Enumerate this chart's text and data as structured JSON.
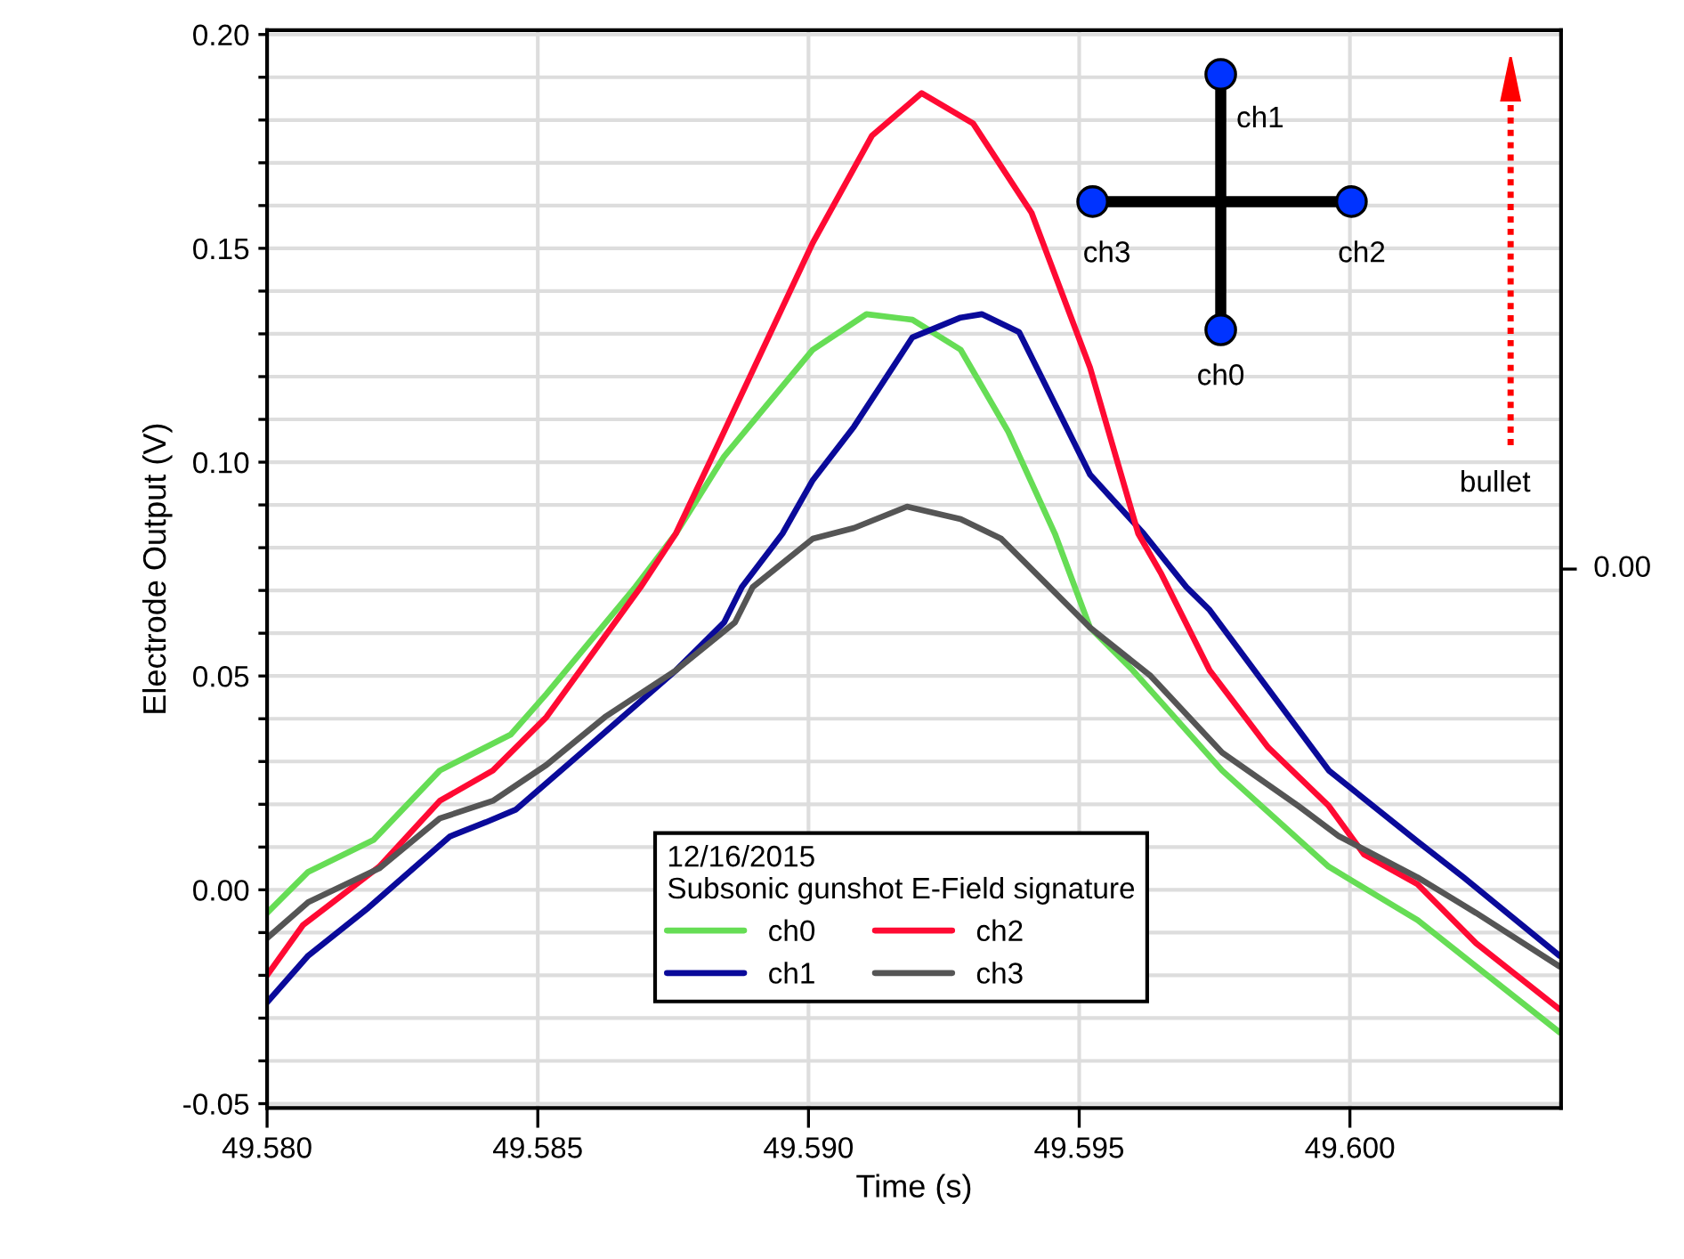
{
  "chart_data": {
    "type": "line",
    "xlabel": "Time (s)",
    "ylabel": "Electrode Output (V)",
    "legend_title": "12/16/2015\nSubsonic gunshot E-Field signature",
    "legend": "bottom",
    "grid": true,
    "marker": "none",
    "line_style": "solid",
    "xlim": [
      49.58,
      49.6039
    ],
    "xticks": [
      {
        "value": 49.58,
        "label": "49.580"
      },
      {
        "value": 49.585,
        "label": "49.585"
      },
      {
        "value": 49.59,
        "label": "49.590"
      },
      {
        "value": 49.595,
        "label": "49.595"
      },
      {
        "value": 49.6,
        "label": "49.600"
      }
    ],
    "ylim": [
      -0.051,
      0.201
    ],
    "yticks": [
      {
        "value": -0.05,
        "label": "-0.05"
      },
      {
        "value": -0.04,
        "label": null
      },
      {
        "value": -0.03,
        "label": null
      },
      {
        "value": -0.02,
        "label": null
      },
      {
        "value": -0.01,
        "label": null
      },
      {
        "value": 0,
        "label": "0.00"
      },
      {
        "value": 0.01,
        "label": null
      },
      {
        "value": 0.02,
        "label": null
      },
      {
        "value": 0.03,
        "label": null
      },
      {
        "value": 0.04,
        "label": null
      },
      {
        "value": 0.05,
        "label": "0.05"
      },
      {
        "value": 0.06,
        "label": null
      },
      {
        "value": 0.07,
        "label": null
      },
      {
        "value": 0.08,
        "label": null
      },
      {
        "value": 0.09,
        "label": null
      },
      {
        "value": 0.1,
        "label": "0.10"
      },
      {
        "value": 0.11,
        "label": null
      },
      {
        "value": 0.12,
        "label": null
      },
      {
        "value": 0.13,
        "label": null
      },
      {
        "value": 0.14,
        "label": null
      },
      {
        "value": 0.15,
        "label": "0.15"
      },
      {
        "value": 0.16,
        "label": null
      },
      {
        "value": 0.17,
        "label": null
      },
      {
        "value": 0.18,
        "label": null
      },
      {
        "value": 0.19,
        "label": null
      },
      {
        "value": 0.2,
        "label": "0.20"
      }
    ],
    "annotations": [
      "ch1",
      "ch3",
      "ch2",
      "ch0",
      "bullet",
      "0.00"
    ],
    "series": [
      {
        "name": "ch0",
        "color": "#66dd55",
        "x": [
          49.58,
          49.58076,
          49.58197,
          49.58319,
          49.5845,
          49.58516,
          49.5868,
          49.58755,
          49.58844,
          49.59008,
          49.59107,
          49.59192,
          49.59281,
          49.59369,
          49.59455,
          49.5952,
          49.59599,
          49.59764,
          49.59961,
          49.60125,
          49.60233,
          49.60387
        ],
        "values": [
          -0.0054,
          0.0042,
          0.0117,
          0.0279,
          0.0363,
          0.0458,
          0.0708,
          0.0833,
          0.1013,
          0.1263,
          0.1346,
          0.1333,
          0.1263,
          0.1071,
          0.0833,
          0.0613,
          0.0513,
          0.0279,
          0.0054,
          -0.0071,
          -0.0179,
          -0.0333
        ]
      },
      {
        "name": "ch1",
        "color": "#0a0a9a",
        "x": [
          49.58,
          49.58076,
          49.58187,
          49.58338,
          49.58404,
          49.5846,
          49.58581,
          49.58755,
          49.58844,
          49.58877,
          49.58952,
          49.59008,
          49.59084,
          49.59192,
          49.59281,
          49.5932,
          49.59389,
          49.5952,
          49.59619,
          49.59698,
          49.59741,
          49.59961,
          49.60125,
          49.6021,
          49.60387
        ],
        "values": [
          -0.0263,
          -0.0154,
          -0.0042,
          0.0125,
          0.0158,
          0.0188,
          0.0321,
          0.0513,
          0.0625,
          0.0708,
          0.0833,
          0.0958,
          0.1083,
          0.1292,
          0.1338,
          0.1346,
          0.1304,
          0.0971,
          0.0833,
          0.0708,
          0.0654,
          0.0279,
          0.0113,
          0.0029,
          -0.0154
        ]
      },
      {
        "name": "ch2",
        "color": "#ff0a33",
        "x": [
          49.58,
          49.58066,
          49.58207,
          49.58319,
          49.58417,
          49.58516,
          49.5869,
          49.58755,
          49.58844,
          49.59008,
          49.59117,
          49.59209,
          49.59304,
          49.59412,
          49.5952,
          49.59609,
          49.59652,
          49.59741,
          49.59849,
          49.59961,
          49.60026,
          49.60125,
          49.60233,
          49.60387
        ],
        "values": [
          -0.02,
          -0.0083,
          0.0054,
          0.0208,
          0.0279,
          0.0404,
          0.0708,
          0.0833,
          0.1071,
          0.1513,
          0.1763,
          0.1863,
          0.1792,
          0.1583,
          0.1221,
          0.0833,
          0.0738,
          0.0513,
          0.0333,
          0.0196,
          0.0083,
          0.0013,
          -0.0125,
          -0.0279
        ]
      },
      {
        "name": "ch3",
        "color": "#555555",
        "x": [
          49.58,
          49.58076,
          49.58207,
          49.58319,
          49.58417,
          49.58516,
          49.58624,
          49.58755,
          49.58864,
          49.58897,
          49.59008,
          49.59084,
          49.59182,
          49.59281,
          49.59356,
          49.59412,
          49.5952,
          49.59632,
          49.59764,
          49.59905,
          49.5998,
          49.60125,
          49.60233,
          49.60387
        ],
        "values": [
          -0.0113,
          -0.0029,
          0.005,
          0.0167,
          0.0208,
          0.0292,
          0.0404,
          0.0513,
          0.0625,
          0.0708,
          0.0821,
          0.0846,
          0.0896,
          0.0867,
          0.0821,
          0.075,
          0.0613,
          0.05,
          0.0321,
          0.0196,
          0.0125,
          0.0029,
          -0.0054,
          -0.0179
        ]
      }
    ]
  }
}
